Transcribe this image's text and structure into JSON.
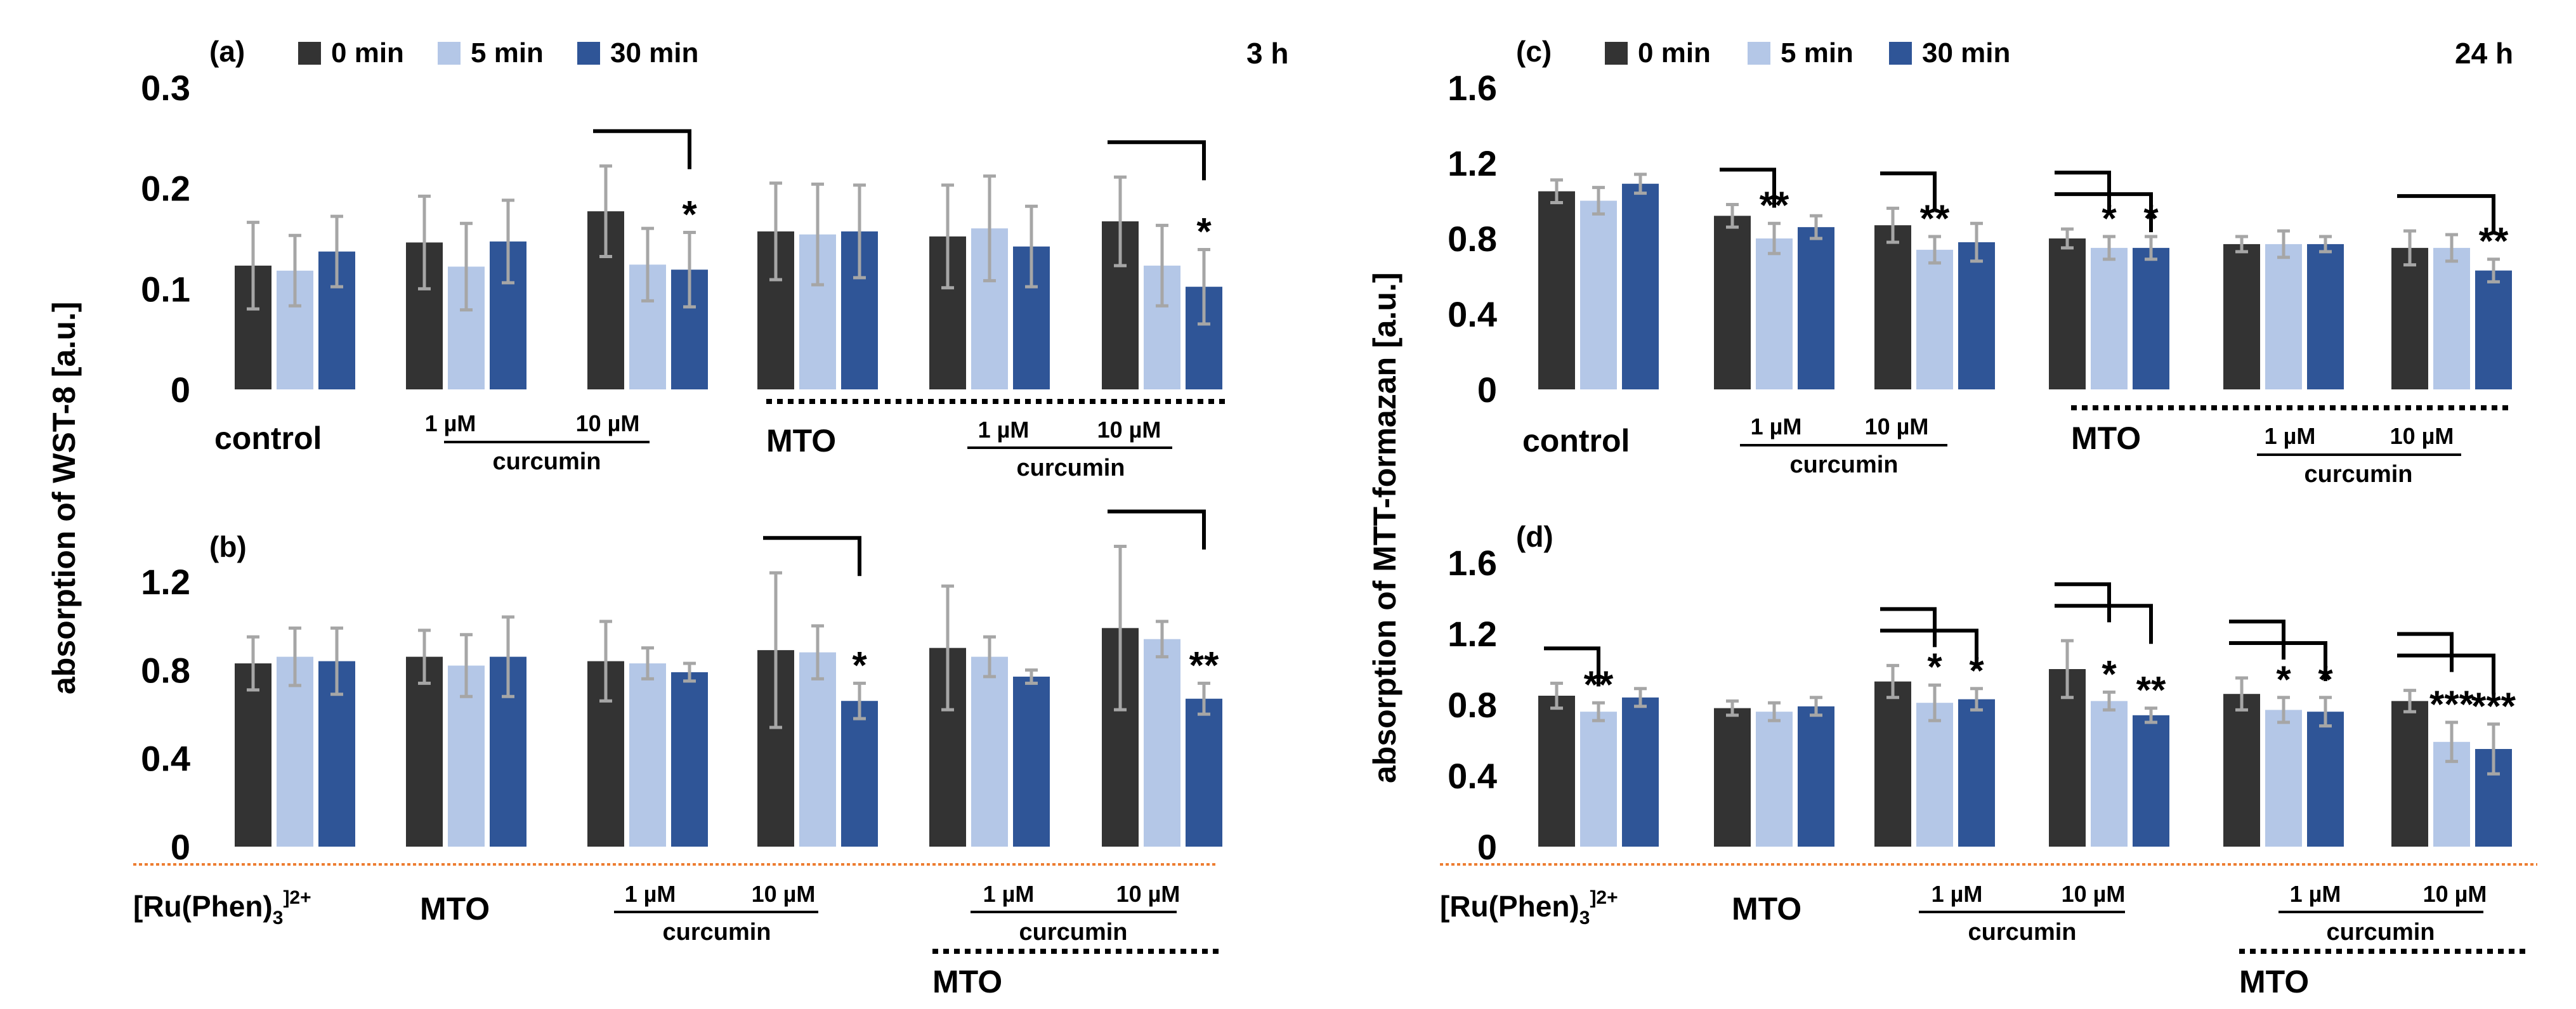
{
  "legend": [
    {
      "key": "s0",
      "label": "0 min",
      "color": "#333333"
    },
    {
      "key": "s1",
      "label": "5 min",
      "color": "#b4c7e7"
    },
    {
      "key": "s2",
      "label": "30 min",
      "color": "#2f5597"
    }
  ],
  "errorbar_color": "#a6a6a6",
  "separator_color": "#ed7d31",
  "ylabels": {
    "left": "absorption of WST-8 [a.u.]",
    "right": "absorption of MTT-formazan [a.u.]"
  },
  "chart_data": [
    {
      "id": "a",
      "panel_label": "(a)",
      "time_label": "3 h",
      "type": "bar",
      "ylim": [
        0,
        0.3
      ],
      "yticks": [
        "0",
        "0.1",
        "0.2",
        "0.3"
      ],
      "ytick_values": [
        0,
        0.1,
        0.2,
        0.3
      ],
      "series_names": [
        "0 min",
        "5 min",
        "30 min"
      ],
      "groups": [
        {
          "values": [
            0.123,
            0.118,
            0.137
          ],
          "errors": [
            0.043,
            0.035,
            0.035
          ],
          "stars": [],
          "brackets": []
        },
        {
          "values": [
            0.146,
            0.122,
            0.147
          ],
          "errors": [
            0.046,
            0.043,
            0.041
          ],
          "stars": [],
          "brackets": []
        },
        {
          "values": [
            0.177,
            0.124,
            0.119
          ],
          "errors": [
            0.045,
            0.036,
            0.037
          ],
          "stars": [
            "",
            "",
            "*"
          ],
          "brackets": [
            2
          ]
        },
        {
          "values": [
            0.157,
            0.154,
            0.157
          ],
          "errors": [
            0.048,
            0.05,
            0.046
          ],
          "stars": [],
          "brackets": []
        },
        {
          "values": [
            0.152,
            0.16,
            0.142
          ],
          "errors": [
            0.051,
            0.052,
            0.04
          ],
          "stars": [],
          "brackets": []
        },
        {
          "values": [
            0.167,
            0.123,
            0.102
          ],
          "errors": [
            0.044,
            0.04,
            0.037
          ],
          "stars": [
            "",
            "",
            "*"
          ],
          "brackets": [
            2
          ]
        }
      ],
      "annotations": {
        "g0": "control",
        "g1": "1 µM",
        "g2": "10 µM",
        "cur1": "curcumin",
        "mto": "MTO",
        "g4": "1 µM",
        "g5": "10 µM",
        "cur2": "curcumin"
      }
    },
    {
      "id": "b",
      "panel_label": "(b)",
      "type": "bar",
      "ylim": [
        0,
        1.35
      ],
      "yticks": [
        "0",
        "0.4",
        "0.8",
        "1.2"
      ],
      "ytick_values": [
        0,
        0.4,
        0.8,
        1.2
      ],
      "series_names": [
        "0 min",
        "5 min",
        "30 min"
      ],
      "groups": [
        {
          "values": [
            0.83,
            0.86,
            0.84
          ],
          "errors": [
            0.12,
            0.13,
            0.15
          ],
          "stars": [],
          "brackets": []
        },
        {
          "values": [
            0.86,
            0.82,
            0.86
          ],
          "errors": [
            0.12,
            0.14,
            0.18
          ],
          "stars": [],
          "brackets": []
        },
        {
          "values": [
            0.84,
            0.83,
            0.79
          ],
          "errors": [
            0.18,
            0.07,
            0.04
          ],
          "stars": [],
          "brackets": []
        },
        {
          "values": [
            0.89,
            0.88,
            0.66
          ],
          "errors": [
            0.35,
            0.12,
            0.08
          ],
          "stars": [
            "",
            "",
            "*"
          ],
          "brackets": [
            2
          ]
        },
        {
          "values": [
            0.9,
            0.86,
            0.77
          ],
          "errors": [
            0.28,
            0.09,
            0.03
          ],
          "stars": [],
          "brackets": []
        },
        {
          "values": [
            0.99,
            0.94,
            0.67
          ],
          "errors": [
            0.37,
            0.08,
            0.07
          ],
          "stars": [
            "",
            "",
            "**"
          ],
          "brackets": [
            2
          ]
        }
      ],
      "annotations": {
        "g0": "[Ru(Phen)",
        "g0sub": "3",
        "g0sup": "]2+",
        "g1": "MTO",
        "g2": "1 µM",
        "g3": "10 µM",
        "cur1": "curcumin",
        "g4": "1 µM",
        "g5": "10 µM",
        "cur2": "curcumin",
        "mto": "MTO"
      }
    },
    {
      "id": "c",
      "panel_label": "(c)",
      "time_label": "24 h",
      "type": "bar",
      "ylim": [
        0,
        1.6
      ],
      "yticks": [
        "0",
        "0.4",
        "0.8",
        "1.2",
        "1.6"
      ],
      "ytick_values": [
        0,
        0.4,
        0.8,
        1.2,
        1.6
      ],
      "series_names": [
        "0 min",
        "5 min",
        "30 min"
      ],
      "groups": [
        {
          "values": [
            1.05,
            1.0,
            1.09
          ],
          "errors": [
            0.06,
            0.07,
            0.05
          ],
          "stars": [],
          "brackets": []
        },
        {
          "values": [
            0.92,
            0.8,
            0.86
          ],
          "errors": [
            0.06,
            0.08,
            0.06
          ],
          "stars": [
            "",
            "**",
            ""
          ],
          "brackets": [
            1
          ]
        },
        {
          "values": [
            0.87,
            0.74,
            0.78
          ],
          "errors": [
            0.09,
            0.07,
            0.1
          ],
          "stars": [
            "",
            "**",
            ""
          ],
          "brackets": [
            1
          ]
        },
        {
          "values": [
            0.8,
            0.75,
            0.75
          ],
          "errors": [
            0.05,
            0.06,
            0.06
          ],
          "stars": [
            "",
            "*",
            "*"
          ],
          "brackets": [
            1,
            2
          ]
        },
        {
          "values": [
            0.77,
            0.77,
            0.77
          ],
          "errors": [
            0.04,
            0.07,
            0.04
          ],
          "stars": [],
          "brackets": []
        },
        {
          "values": [
            0.75,
            0.75,
            0.63
          ],
          "errors": [
            0.09,
            0.07,
            0.06
          ],
          "stars": [
            "",
            "",
            "**"
          ],
          "brackets": [
            2
          ]
        }
      ],
      "annotations": {
        "g0": "control",
        "g1": "1 µM",
        "g2": "10 µM",
        "cur1": "curcumin",
        "mto": "MTO",
        "g4": "1 µM",
        "g5": "10 µM",
        "cur2": "curcumin"
      }
    },
    {
      "id": "d",
      "panel_label": "(d)",
      "type": "bar",
      "ylim": [
        0,
        1.6
      ],
      "yticks": [
        "0",
        "0.4",
        "0.8",
        "1.2",
        "1.6"
      ],
      "ytick_values": [
        0,
        0.4,
        0.8,
        1.2,
        1.6
      ],
      "series_names": [
        "0 min",
        "5 min",
        "30 min"
      ],
      "groups": [
        {
          "values": [
            0.85,
            0.76,
            0.84
          ],
          "errors": [
            0.07,
            0.05,
            0.05
          ],
          "stars": [
            "",
            "**",
            ""
          ],
          "brackets": [
            1
          ]
        },
        {
          "values": [
            0.78,
            0.76,
            0.79
          ],
          "errors": [
            0.04,
            0.05,
            0.05
          ],
          "stars": [],
          "brackets": []
        },
        {
          "values": [
            0.93,
            0.81,
            0.83
          ],
          "errors": [
            0.09,
            0.1,
            0.06
          ],
          "stars": [
            "",
            "*",
            "*"
          ],
          "brackets": [
            1,
            2
          ]
        },
        {
          "values": [
            1.0,
            0.82,
            0.74
          ],
          "errors": [
            0.16,
            0.05,
            0.04
          ],
          "stars": [
            "",
            "*",
            "**"
          ],
          "brackets": [
            1,
            2
          ]
        },
        {
          "values": [
            0.86,
            0.77,
            0.76
          ],
          "errors": [
            0.09,
            0.07,
            0.08
          ],
          "stars": [
            "",
            "*",
            "*"
          ],
          "brackets": [
            1,
            2
          ]
        },
        {
          "values": [
            0.82,
            0.59,
            0.55
          ],
          "errors": [
            0.06,
            0.11,
            0.14
          ],
          "stars": [
            "",
            "***",
            "***"
          ],
          "brackets": [
            1,
            2
          ]
        }
      ],
      "annotations": {
        "g0": "[Ru(Phen)",
        "g0sub": "3",
        "g0sup": "]2+",
        "g1": "MTO",
        "g2": "1 µM",
        "g3": "10 µM",
        "cur1": "curcumin",
        "g4": "1 µM",
        "g5": "10 µM",
        "cur2": "curcumin",
        "mto": "MTO"
      }
    }
  ]
}
